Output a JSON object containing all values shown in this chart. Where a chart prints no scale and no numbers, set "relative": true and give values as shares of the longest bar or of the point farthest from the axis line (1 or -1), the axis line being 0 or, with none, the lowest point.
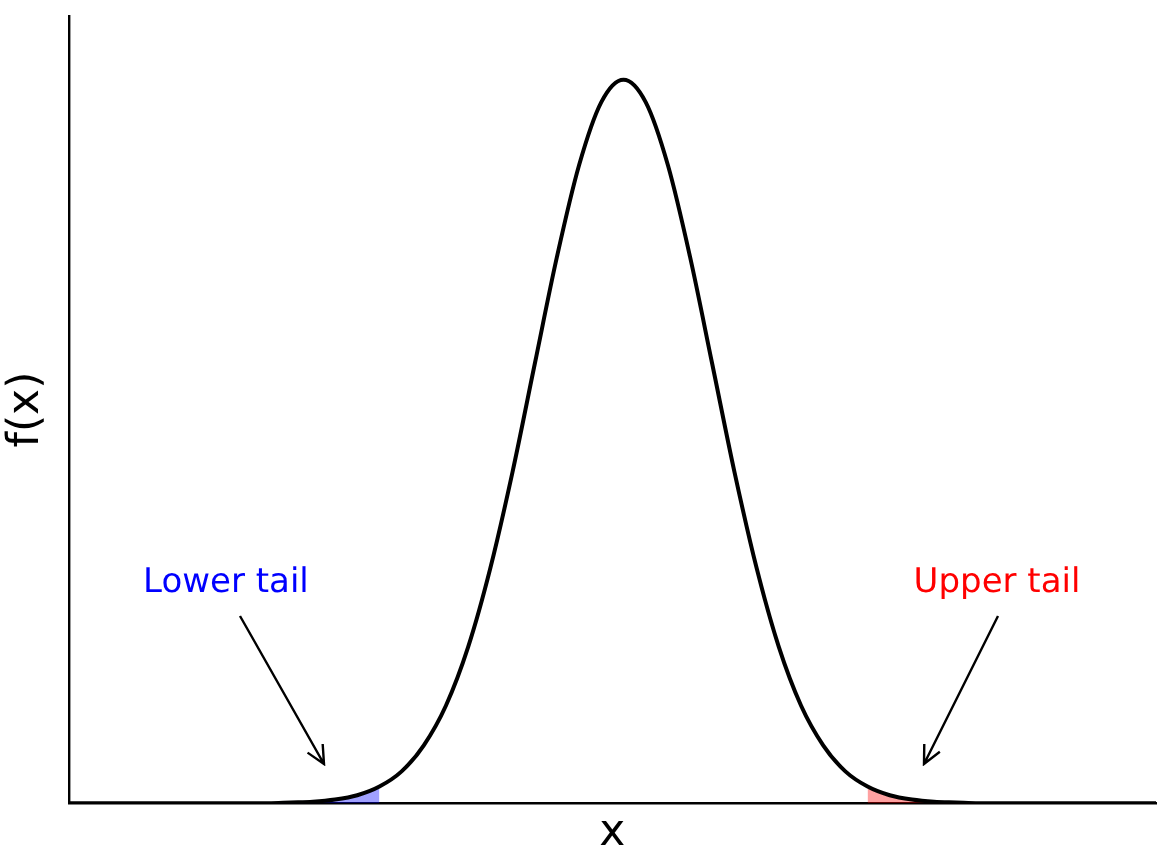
{
  "chart_data": {
    "type": "line",
    "relative": true,
    "xlabel": "x",
    "ylabel": "f(x)",
    "tick_labels": false,
    "grid": false,
    "legend": false,
    "marker": "none",
    "line_style": "solid",
    "categories": [
      null,
      null,
      null,
      null,
      null,
      null,
      null,
      null,
      null,
      null,
      null,
      null,
      null,
      null,
      null,
      null,
      null,
      null,
      null,
      null,
      null,
      null,
      null,
      null,
      null,
      null,
      null,
      null,
      null,
      null,
      null,
      null,
      null,
      null,
      null,
      null,
      null,
      null,
      null,
      null,
      null,
      null,
      null,
      null,
      null,
      null,
      null,
      null,
      null,
      null
    ],
    "series": [
      {
        "type": "line",
        "color": "#000000",
        "values": [
          0,
          0,
          0,
          0,
          0,
          0,
          0,
          0,
          0,
          0,
          0.001,
          0.002,
          0.005,
          0.011,
          0.023,
          0.044,
          0.08,
          0.135,
          0.216,
          0.325,
          0.458,
          0.607,
          0.755,
          0.882,
          0.969,
          1,
          0.969,
          0.882,
          0.755,
          0.607,
          0.458,
          0.325,
          0.216,
          0.135,
          0.08,
          0.044,
          0.023,
          0.011,
          0.005,
          0.002,
          0.001,
          0,
          0,
          0,
          0,
          0,
          0,
          0,
          0,
          0
        ]
      },
      {
        "type": "area",
        "color": "#0000ff",
        "values": [
          null,
          null,
          null,
          null,
          null,
          null,
          null,
          null,
          null,
          0,
          0.001,
          0.002,
          0.005,
          0.011,
          0.023,
          null,
          null,
          null,
          null,
          null,
          null,
          null,
          null,
          null,
          null,
          null,
          null,
          null,
          null,
          null,
          null,
          null,
          null,
          null,
          null,
          null,
          null,
          null,
          null,
          null,
          null,
          null,
          null,
          null,
          null,
          null,
          null,
          null,
          null,
          null
        ]
      },
      {
        "type": "area",
        "color": "#ff0000",
        "values": [
          null,
          null,
          null,
          null,
          null,
          null,
          null,
          null,
          null,
          null,
          null,
          null,
          null,
          null,
          null,
          null,
          null,
          null,
          null,
          null,
          null,
          null,
          null,
          null,
          null,
          null,
          null,
          null,
          null,
          null,
          null,
          null,
          null,
          null,
          null,
          null,
          0.023,
          0.011,
          0.005,
          0.002,
          0.001,
          0,
          null,
          null,
          null,
          null,
          null,
          null,
          null,
          null
        ]
      }
    ],
    "annotations": [
      "Lower tail",
      "Upper tail"
    ]
  }
}
